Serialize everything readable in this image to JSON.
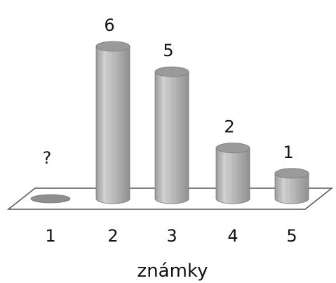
{
  "chart_data": {
    "type": "bar",
    "style": "3d-cylinder",
    "categories": [
      "1",
      "2",
      "3",
      "4",
      "5"
    ],
    "values": [
      0,
      6,
      5,
      2,
      1
    ],
    "data_labels": [
      "?",
      "6",
      "5",
      "2",
      "1"
    ],
    "xlabel": "známky",
    "ylim": [
      0,
      6
    ],
    "grid": false,
    "legend": "none",
    "colors": {
      "bar_fill": "#b3b3b3",
      "bar_highlight": "#dcdcdc",
      "bar_shadow": "#8c8c8c",
      "bar_top": "#9a9a9a",
      "floor_stroke": "#555555"
    }
  }
}
